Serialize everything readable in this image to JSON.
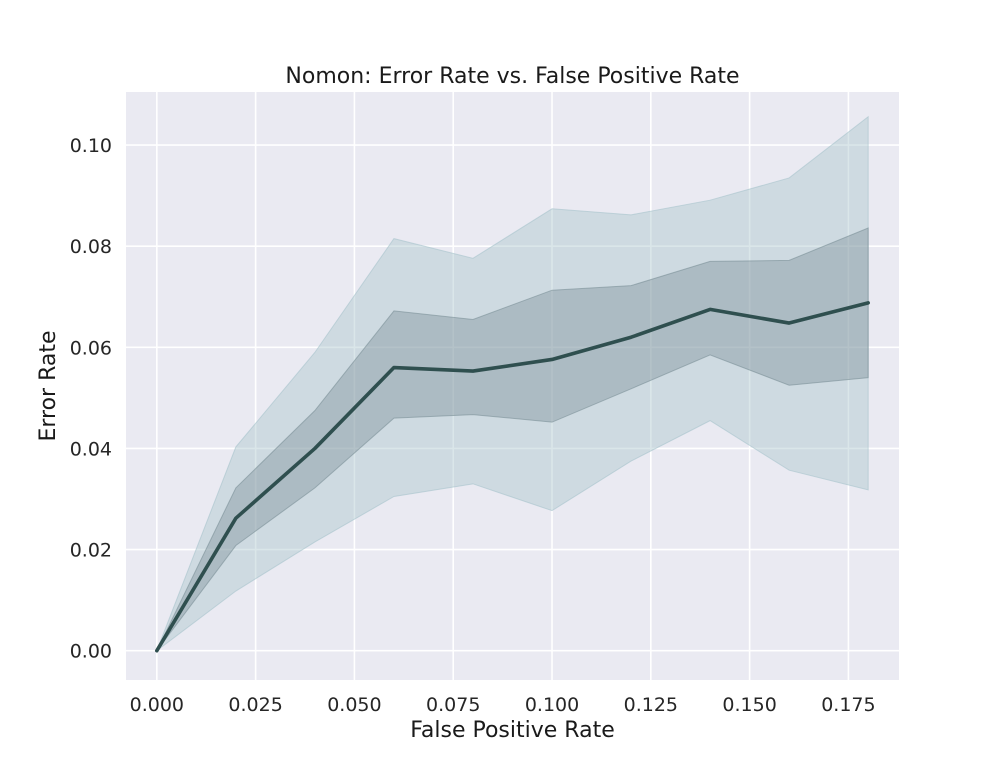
{
  "chart_data": {
    "type": "line",
    "title": "Nomon: Error Rate vs. False Positive Rate",
    "xlabel": "False Positive Rate",
    "ylabel": "Error Rate",
    "xlim": [
      -0.0078,
      0.1878
    ],
    "ylim": [
      -0.0058,
      0.1105
    ],
    "grid": true,
    "legend": "none",
    "xticks": [
      0.0,
      0.025,
      0.05,
      0.075,
      0.1,
      0.125,
      0.15,
      0.175
    ],
    "xtick_labels": [
      "0.000",
      "0.025",
      "0.050",
      "0.075",
      "0.100",
      "0.125",
      "0.150",
      "0.175"
    ],
    "yticks": [
      0.0,
      0.02,
      0.04,
      0.06,
      0.08,
      0.1
    ],
    "ytick_labels": [
      "0.00",
      "0.02",
      "0.04",
      "0.06",
      "0.08",
      "0.10"
    ],
    "x": [
      0.0,
      0.02,
      0.04,
      0.06,
      0.08,
      0.1,
      0.12,
      0.14,
      0.16,
      0.18
    ],
    "series": [
      {
        "values": [
          0.0,
          0.0262,
          0.04,
          0.056,
          0.0553,
          0.0576,
          0.062,
          0.0675,
          0.0648,
          0.0688
        ],
        "inner_band_lower": [
          0.0,
          0.0208,
          0.0322,
          0.046,
          0.0467,
          0.0452,
          0.0518,
          0.0585,
          0.0525,
          0.054
        ],
        "inner_band_upper": [
          0.0,
          0.0322,
          0.0475,
          0.0672,
          0.0655,
          0.0713,
          0.0722,
          0.077,
          0.0772,
          0.0836
        ],
        "outer_band_lower": [
          0.0,
          0.0118,
          0.0215,
          0.0305,
          0.033,
          0.0277,
          0.0375,
          0.0455,
          0.0357,
          0.0318
        ],
        "outer_band_upper": [
          0.0,
          0.0403,
          0.059,
          0.0815,
          0.0776,
          0.0874,
          0.0862,
          0.0891,
          0.0935,
          0.1056
        ]
      }
    ],
    "colors": {
      "plot_background": "#eaeaf2",
      "grid": "#ffffff",
      "line": "#2f4f4f",
      "inner_band": "#758a92",
      "outer_band": "#a7c3cb"
    }
  }
}
